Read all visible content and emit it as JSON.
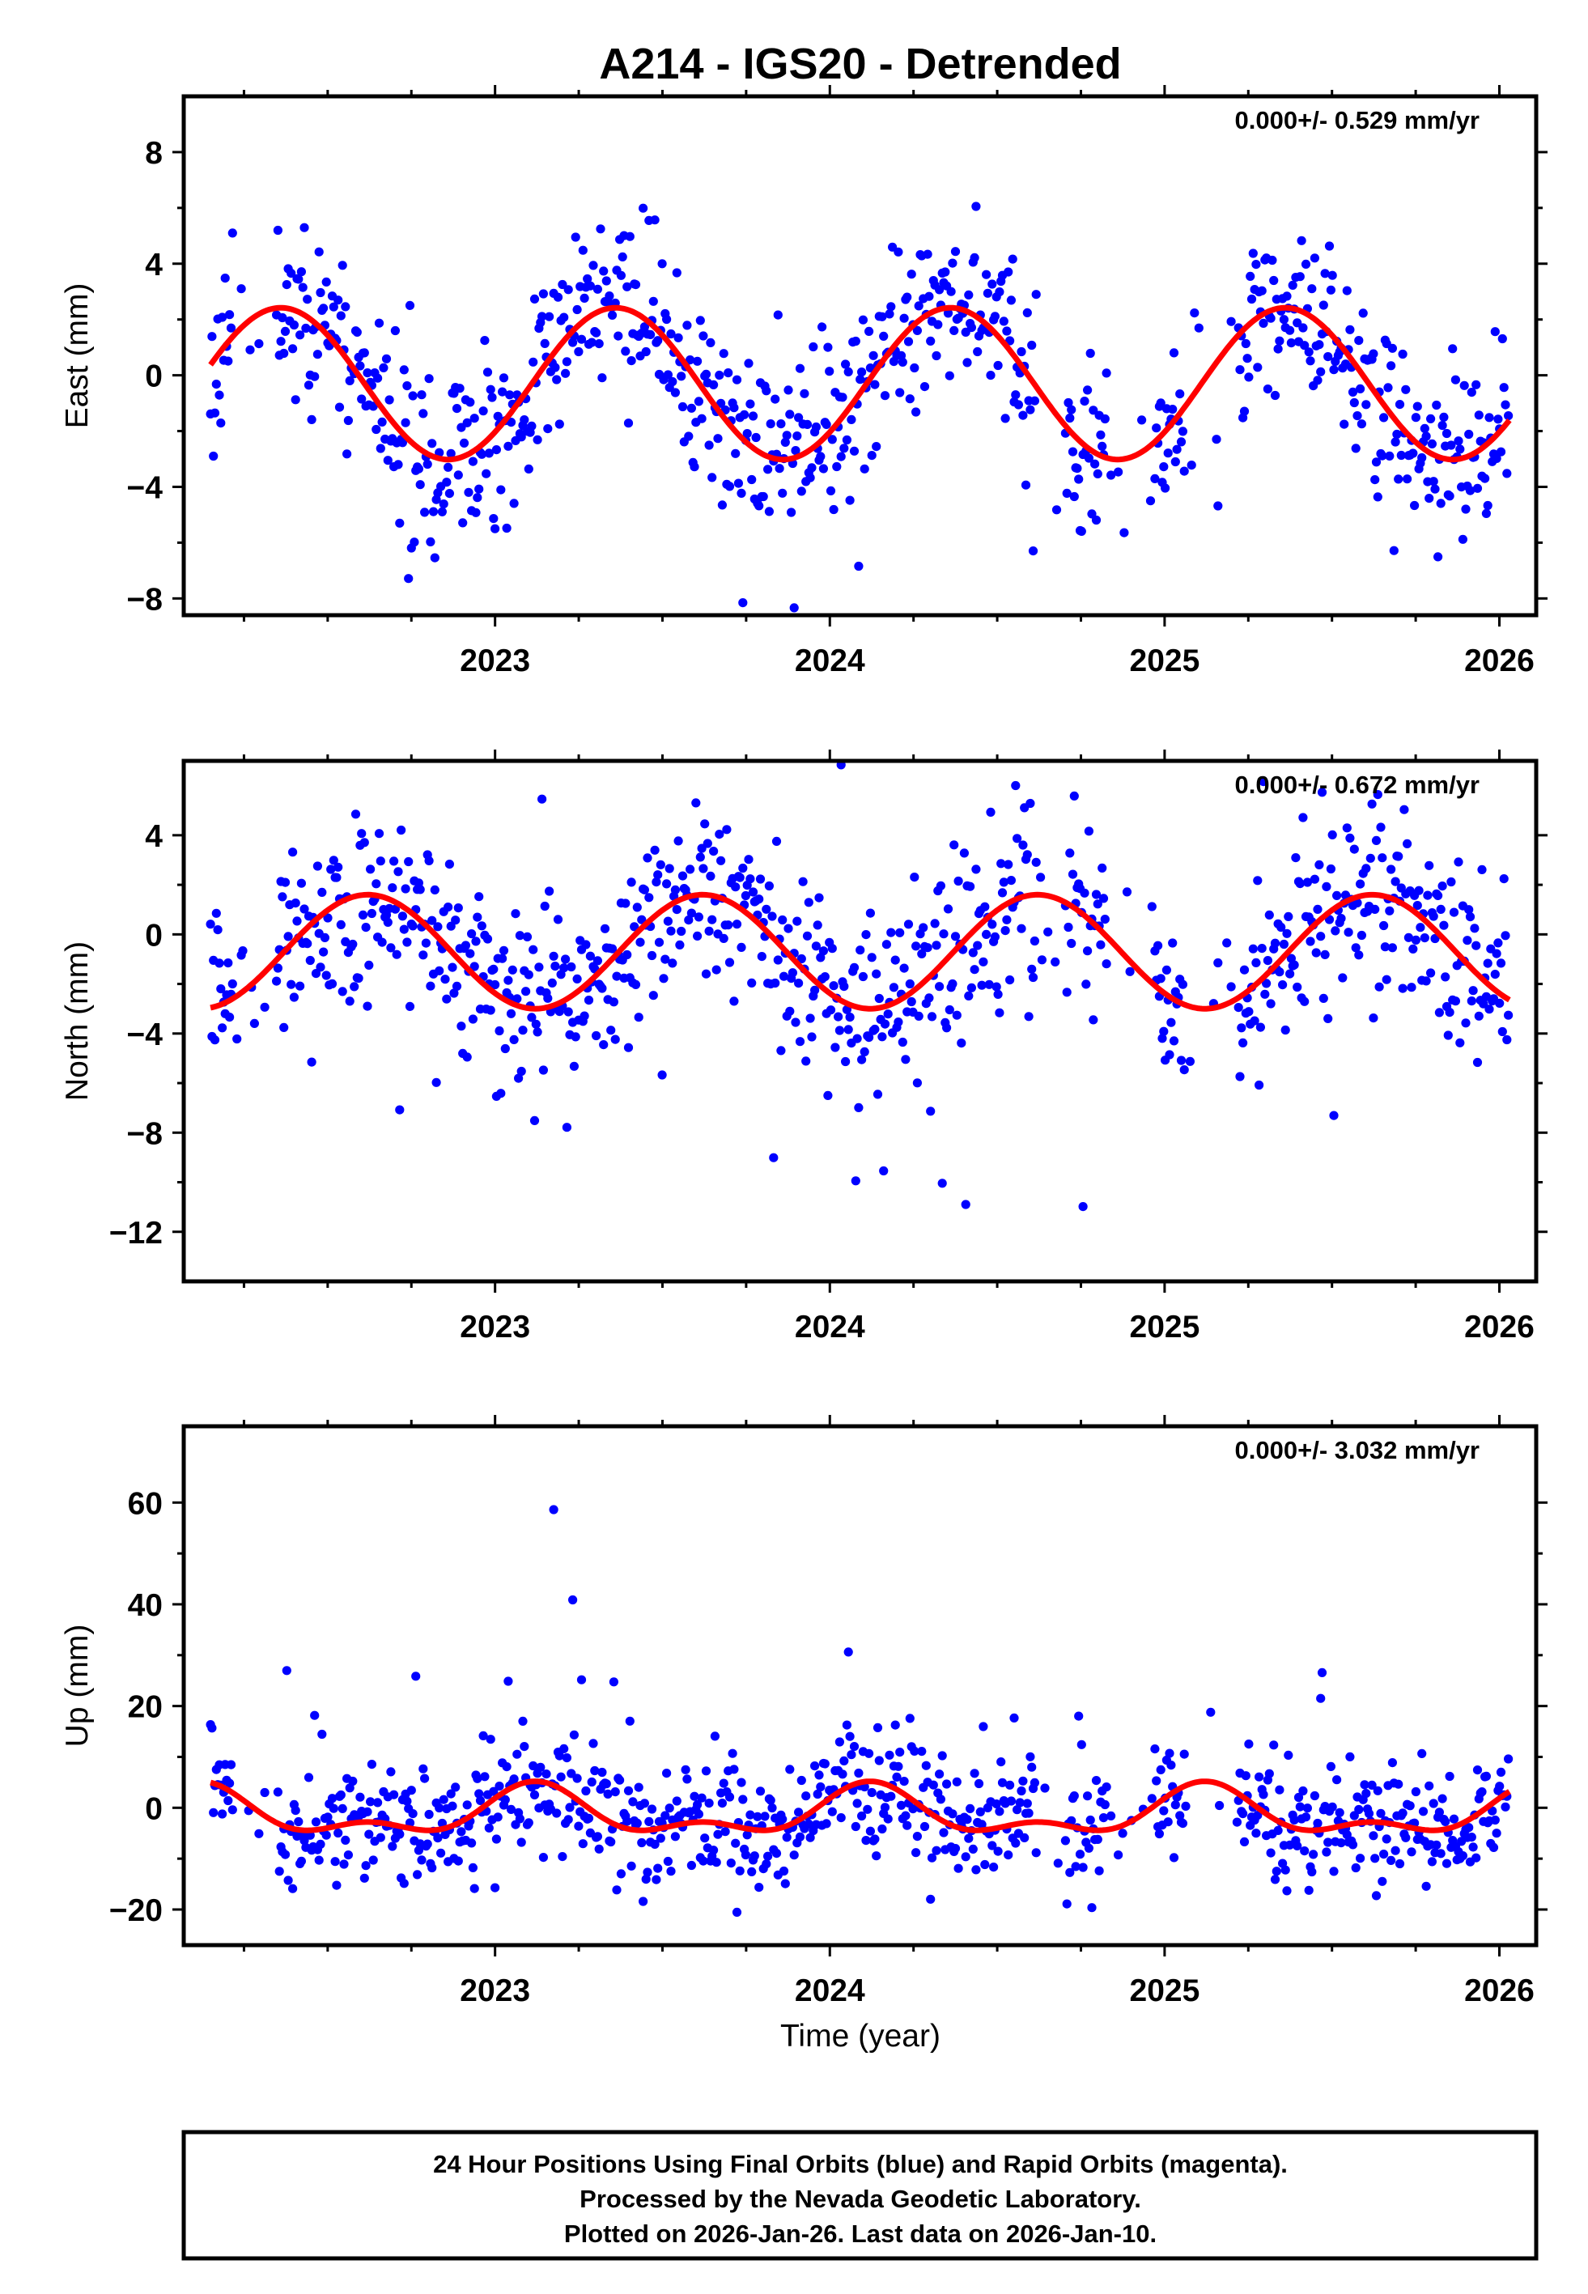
{
  "title": "A214 - IGS20 - Detrended",
  "xlabel": "Time (year)",
  "footer": {
    "line1": "24 Hour Positions Using Final Orbits (blue) and Rapid Orbits (magenta).",
    "line2": "Processed by the Nevada Geodetic Laboratory.",
    "line3": "Plotted on 2026-Jan-26. Last data on 2026-Jan-10."
  },
  "colors": {
    "points": "#0000ff",
    "fit": "#ff0000",
    "frame": "#000000"
  },
  "chart_data": [
    {
      "type": "scatter",
      "component": "east",
      "ylabel": "East (mm)",
      "rate_label": "0.000+/- 0.529 mm/yr",
      "xlim": [
        2022.07,
        2026.11
      ],
      "ylim": [
        -8.6,
        10.0
      ],
      "xticks": [
        2023,
        2024,
        2025,
        2026
      ],
      "xtick_labels": [
        "2023",
        "2024",
        "2025",
        "2026"
      ],
      "yticks": [
        -8,
        -4,
        0,
        4,
        8
      ],
      "ytick_labels": [
        "−8",
        "−4",
        "0",
        "4",
        "8"
      ],
      "series_points": {
        "x_start": 2022.15,
        "x_end": 2026.03,
        "spacing_days": 1.6,
        "gaps": [
          [
            2022.22,
            2022.35
          ],
          [
            2024.62,
            2024.7
          ],
          [
            2024.83,
            2024.97
          ],
          [
            2025.06,
            2025.22
          ]
        ],
        "noise_sd": 1.55,
        "outlier_rate": 0.03,
        "outlier_sd": 3.6,
        "seed": 11,
        "note": "daily positions; dense cloud following the seasonal model"
      },
      "fit": {
        "offset": -0.3,
        "annual_amp": 2.72,
        "annual_peak": 2022.36,
        "semiannual_amp": 0.0,
        "semiannual_peak": 0
      }
    },
    {
      "type": "scatter",
      "component": "north",
      "ylabel": "North (mm)",
      "rate_label": "0.000+/- 0.672 mm/yr",
      "xlim": [
        2022.07,
        2026.11
      ],
      "ylim": [
        -14.0,
        7.0
      ],
      "xticks": [
        2023,
        2024,
        2025,
        2026
      ],
      "xtick_labels": [
        "2023",
        "2024",
        "2025",
        "2026"
      ],
      "yticks": [
        -12,
        -8,
        -4,
        0,
        4
      ],
      "ytick_labels": [
        "−12",
        "−8",
        "−4",
        "0",
        "4"
      ],
      "series_points": {
        "x_start": 2022.15,
        "x_end": 2026.03,
        "spacing_days": 1.6,
        "gaps": [
          [
            2022.22,
            2022.35
          ],
          [
            2024.62,
            2024.7
          ],
          [
            2024.83,
            2024.97
          ],
          [
            2025.06,
            2025.22
          ]
        ],
        "noise_sd": 1.7,
        "outlier_rate": 0.06,
        "outlier_sd": 4.5,
        "seed": 23,
        "note": "daily positions; many negative outliers near the seasonal minima"
      },
      "fit": {
        "offset": -0.7,
        "annual_amp": 2.3,
        "annual_peak": 2022.62,
        "semiannual_amp": 0.0,
        "semiannual_peak": 0
      }
    },
    {
      "type": "scatter",
      "component": "up",
      "ylabel": "Up (mm)",
      "rate_label": "0.000+/- 3.032 mm/yr",
      "xlim": [
        2022.07,
        2026.11
      ],
      "ylim": [
        -27.0,
        75.0
      ],
      "xticks": [
        2023,
        2024,
        2025,
        2026
      ],
      "xtick_labels": [
        "2023",
        "2024",
        "2025",
        "2026"
      ],
      "yticks": [
        -20,
        0,
        20,
        40,
        60
      ],
      "ytick_labels": [
        "−20",
        "0",
        "20",
        "40",
        "60"
      ],
      "series_points": {
        "x_start": 2022.15,
        "x_end": 2026.03,
        "spacing_days": 1.6,
        "gaps": [
          [
            2022.22,
            2022.35
          ],
          [
            2024.62,
            2024.7
          ],
          [
            2024.83,
            2024.97
          ],
          [
            2025.06,
            2025.22
          ]
        ],
        "noise_sd": 6.0,
        "outlier_rate": 0.09,
        "outlier_sd": 18.0,
        "seed": 37,
        "note": "daily positions; large positive scatter in winter months"
      },
      "fit": {
        "offset": -1.2,
        "annual_amp": 4.0,
        "annual_peak": 2022.12,
        "semiannual_amp": 2.4,
        "semiannual_peak": 2022.12
      }
    }
  ]
}
